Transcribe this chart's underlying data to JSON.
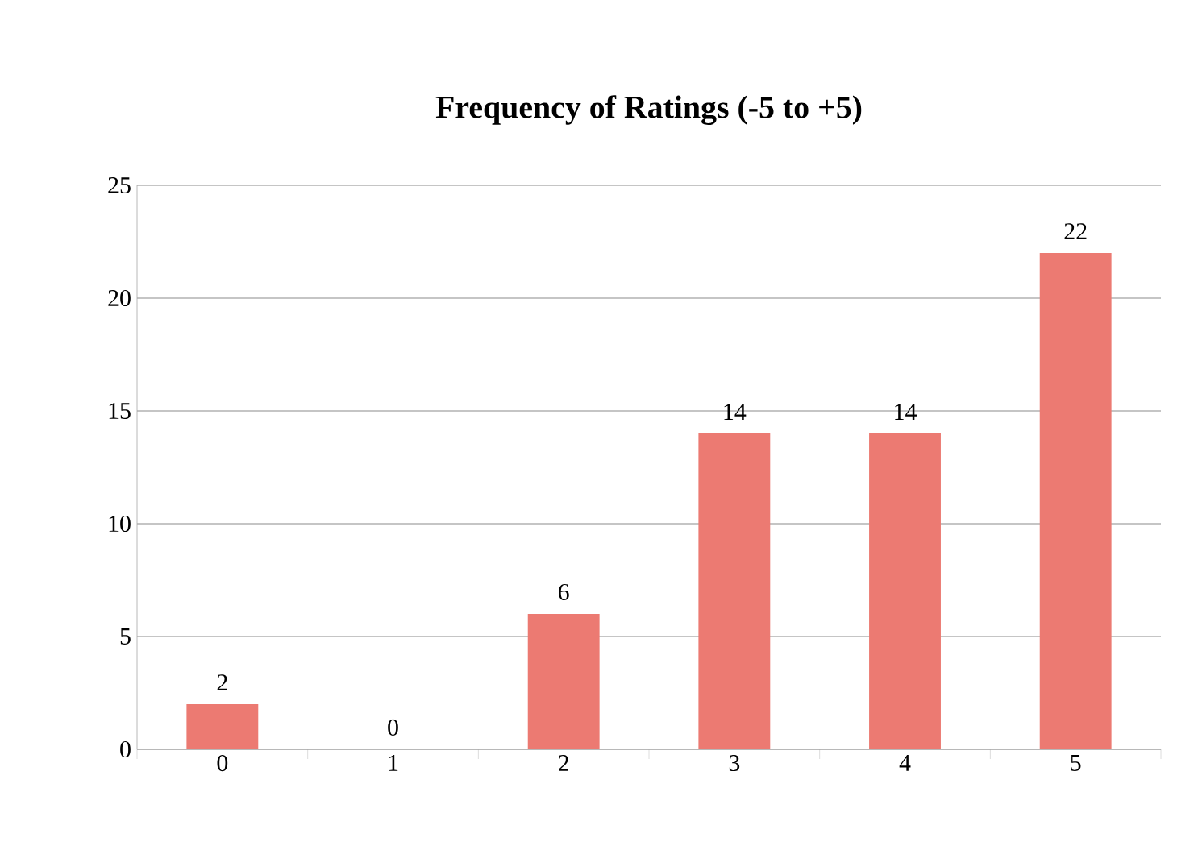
{
  "chart_data": {
    "type": "bar",
    "title": "Frequency of Ratings (-5 to +5)",
    "categories": [
      "0",
      "1",
      "2",
      "3",
      "4",
      "5"
    ],
    "values": [
      2,
      0,
      6,
      14,
      14,
      22
    ],
    "color": "#ec7a72",
    "ylim": [
      0,
      25
    ],
    "yticks": [
      0,
      5,
      10,
      15,
      20,
      25
    ],
    "grid": "y",
    "data_labels": true
  }
}
